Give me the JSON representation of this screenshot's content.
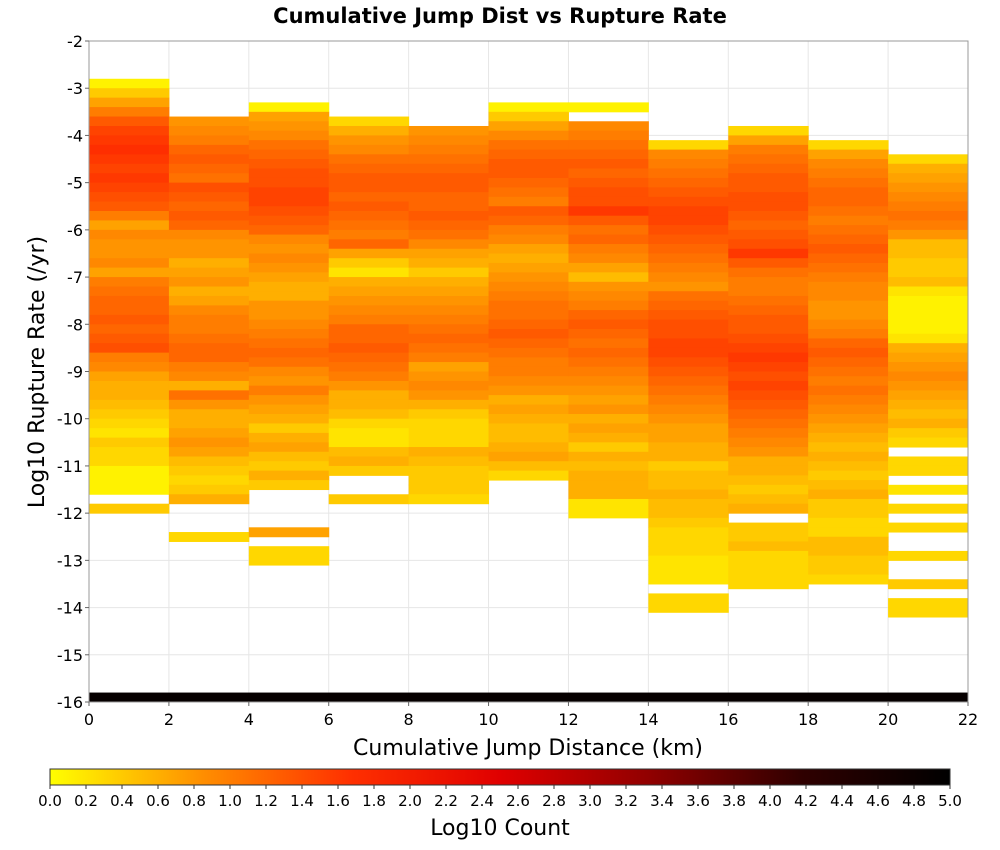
{
  "chart_data": {
    "type": "heatmap",
    "title": "Cumulative Jump Dist vs Rupture Rate",
    "xlabel": "Cumulative Jump Distance (km)",
    "ylabel": "Log10 Rupture Rate (/yr)",
    "colorbar_label": "Log10 Count",
    "xlim": [
      0,
      22
    ],
    "ylim": [
      -16,
      -2
    ],
    "x_ticks": [
      "0",
      "2",
      "4",
      "6",
      "8",
      "10",
      "12",
      "14",
      "16",
      "18",
      "20",
      "22"
    ],
    "y_ticks": [
      "-2",
      "-3",
      "-4",
      "-5",
      "-6",
      "-7",
      "-8",
      "-9",
      "-10",
      "-11",
      "-12",
      "-13",
      "-14",
      "-15",
      "-16"
    ],
    "colorbar_ticks": [
      "0.0",
      "0.2",
      "0.4",
      "0.6",
      "0.8",
      "1.0",
      "1.2",
      "1.4",
      "1.6",
      "1.8",
      "2.0",
      "2.2",
      "2.4",
      "2.6",
      "2.8",
      "3.0",
      "3.2",
      "3.4",
      "3.6",
      "3.8",
      "4.0",
      "4.2",
      "4.4",
      "4.6",
      "4.8",
      "5.0"
    ],
    "colorbar_range": [
      0,
      5
    ],
    "colormap": [
      "#ffff00",
      "#ff9000",
      "#ff3000",
      "#e00000",
      "#900000",
      "#300000",
      "#000000"
    ],
    "grid": true,
    "x_bin_width": 2,
    "y_bin_height": 0.2,
    "columns": [
      {
        "x_start": 0,
        "y_top": -2.8,
        "values": [
          0.1,
          0.4,
          0.7,
          1.0,
          1.3,
          1.5,
          1.6,
          1.7,
          1.6,
          1.5,
          1.6,
          1.5,
          1.4,
          1.3,
          1.0,
          0.7,
          0.9,
          0.8,
          0.8,
          0.9,
          0.7,
          1.0,
          1.1,
          1.2,
          1.2,
          1.3,
          1.2,
          1.3,
          1.4,
          1.0,
          0.9,
          0.7,
          0.6,
          0.6,
          0.5,
          0.4,
          0.3,
          0.2,
          0.4,
          0.3,
          0.3,
          0.1,
          0.1,
          0.1,
          null,
          0.4
        ]
      },
      {
        "x_start": 2,
        "y_top": -3.6,
        "values": [
          0.8,
          0.9,
          1.0,
          1.2,
          1.3,
          1.2,
          1.1,
          1.4,
          1.3,
          1.2,
          1.3,
          1.2,
          0.9,
          0.8,
          0.8,
          0.6,
          0.7,
          0.8,
          0.6,
          0.7,
          0.9,
          1.0,
          1.0,
          1.1,
          1.2,
          1.2,
          1.0,
          0.9,
          0.6,
          1.1,
          0.8,
          0.6,
          0.6,
          0.7,
          0.8,
          0.7,
          0.5,
          0.4,
          0.3,
          0.4,
          0.6,
          null,
          null,
          null,
          0.3
        ]
      },
      {
        "x_start": 4,
        "y_top": -3.3,
        "values": [
          0.1,
          0.7,
          0.8,
          0.9,
          1.1,
          1.2,
          1.3,
          1.4,
          1.4,
          1.5,
          1.5,
          1.4,
          1.3,
          1.2,
          0.9,
          0.8,
          0.9,
          0.8,
          0.7,
          0.6,
          0.6,
          0.8,
          0.8,
          0.9,
          1.0,
          1.1,
          1.2,
          1.1,
          0.9,
          0.8,
          1.0,
          0.8,
          0.7,
          0.6,
          0.4,
          0.6,
          0.7,
          0.5,
          0.4,
          0.6,
          0.4,
          null,
          null,
          null,
          null,
          0.7,
          null,
          0.3,
          0.3
        ]
      },
      {
        "x_start": 6,
        "y_top": -3.6,
        "values": [
          0.3,
          0.6,
          0.8,
          0.9,
          1.1,
          1.2,
          1.3,
          1.3,
          1.2,
          1.3,
          1.2,
          1.1,
          1.0,
          1.2,
          0.7,
          0.4,
          0.2,
          0.6,
          0.7,
          0.8,
          0.9,
          1.0,
          1.2,
          1.2,
          1.3,
          1.2,
          1.1,
          1.0,
          0.8,
          0.6,
          0.6,
          0.5,
          0.3,
          0.2,
          0.2,
          0.5,
          0.6,
          0.4,
          null,
          null,
          0.4
        ]
      },
      {
        "x_start": 8,
        "y_top": -3.8,
        "values": [
          0.8,
          0.9,
          1.0,
          1.1,
          1.2,
          1.3,
          1.3,
          1.2,
          1.2,
          1.3,
          1.2,
          1.1,
          0.9,
          0.7,
          0.6,
          0.4,
          0.6,
          0.7,
          0.8,
          0.9,
          1.0,
          1.1,
          1.2,
          1.1,
          1.0,
          0.7,
          0.8,
          0.9,
          0.8,
          0.6,
          0.4,
          0.3,
          0.3,
          0.3,
          0.6,
          0.5,
          0.4,
          0.4,
          0.4,
          0.3
        ]
      },
      {
        "x_start": 10,
        "y_top": -3.3,
        "values": [
          0.1,
          0.4,
          0.7,
          0.9,
          1.1,
          1.2,
          1.3,
          1.3,
          1.2,
          1.1,
          1.0,
          1.3,
          1.2,
          1.0,
          0.9,
          0.7,
          0.6,
          0.7,
          0.8,
          0.9,
          1.0,
          1.1,
          1.1,
          1.2,
          1.3,
          1.2,
          1.1,
          1.0,
          1.0,
          0.9,
          0.8,
          0.6,
          0.7,
          0.6,
          0.5,
          0.5,
          0.6,
          0.7,
          0.5,
          0.3
        ]
      },
      {
        "x_start": 12,
        "y_top": -3.3,
        "values": [
          0.1,
          null,
          0.9,
          1.0,
          1.1,
          1.2,
          1.3,
          1.2,
          1.3,
          1.4,
          1.4,
          1.6,
          1.3,
          1.1,
          1.2,
          1.0,
          0.9,
          0.7,
          0.5,
          0.8,
          0.9,
          1.0,
          1.2,
          1.3,
          1.2,
          1.1,
          1.2,
          1.1,
          1.0,
          0.9,
          0.8,
          0.7,
          0.8,
          0.6,
          0.7,
          0.6,
          0.4,
          0.6,
          0.5,
          0.6,
          0.6,
          0.6,
          0.2,
          0.2
        ]
      },
      {
        "x_start": 14,
        "y_top": -4.1,
        "values": [
          0.3,
          0.9,
          1.0,
          1.1,
          1.2,
          1.3,
          1.4,
          1.5,
          1.5,
          1.4,
          1.3,
          1.2,
          1.1,
          1.0,
          0.9,
          0.8,
          1.1,
          1.2,
          1.3,
          1.4,
          1.4,
          1.5,
          1.5,
          1.4,
          1.3,
          1.2,
          1.1,
          1.0,
          0.9,
          0.8,
          0.7,
          0.7,
          0.6,
          0.6,
          0.4,
          0.5,
          0.5,
          0.6,
          0.5,
          0.5,
          0.4,
          0.3,
          0.3,
          0.3,
          0.2,
          0.2,
          0.2,
          null,
          0.3,
          0.3
        ]
      },
      {
        "x_start": 16,
        "y_top": -3.8,
        "values": [
          0.3,
          0.7,
          1.0,
          1.1,
          1.2,
          1.3,
          1.3,
          1.4,
          1.4,
          1.3,
          1.2,
          1.3,
          1.4,
          1.6,
          1.3,
          1.1,
          1.0,
          1.0,
          1.1,
          1.2,
          1.3,
          1.3,
          1.4,
          1.5,
          1.6,
          1.5,
          1.4,
          1.5,
          1.4,
          1.3,
          1.2,
          1.1,
          1.0,
          0.9,
          0.8,
          0.6,
          0.6,
          0.5,
          0.4,
          0.5,
          0.6,
          null,
          0.4,
          0.4,
          0.5,
          0.3,
          0.3,
          0.3,
          0.3
        ]
      },
      {
        "x_start": 18,
        "y_top": -4.1,
        "values": [
          0.3,
          0.7,
          0.9,
          1.0,
          1.1,
          1.2,
          1.2,
          1.1,
          1.0,
          1.1,
          1.2,
          1.3,
          1.2,
          1.1,
          1.0,
          0.9,
          0.9,
          0.8,
          0.8,
          0.9,
          1.0,
          1.2,
          1.3,
          1.2,
          1.1,
          1.0,
          1.1,
          1.0,
          0.9,
          0.8,
          0.7,
          0.6,
          0.5,
          0.6,
          0.5,
          0.4,
          0.5,
          0.6,
          0.4,
          0.4,
          0.3,
          0.3,
          0.5,
          0.5,
          0.4,
          0.4,
          0.3
        ]
      },
      {
        "x_start": 20,
        "y_top": -4.4,
        "values": [
          0.3,
          0.6,
          0.7,
          0.8,
          0.9,
          1.0,
          1.1,
          1.0,
          0.8,
          0.5,
          0.5,
          0.4,
          0.4,
          0.5,
          0.2,
          0.1,
          0.1,
          0.1,
          0.1,
          0.2,
          0.6,
          0.7,
          0.8,
          0.9,
          0.8,
          0.7,
          0.6,
          0.5,
          0.6,
          0.4,
          0.3,
          null,
          0.3,
          0.3,
          null,
          0.2,
          null,
          0.3,
          null,
          0.3,
          null,
          null,
          0.3,
          null,
          null,
          0.4,
          null,
          0.3,
          0.3
        ]
      }
    ],
    "bottom_band": {
      "y_range": [
        -16,
        -15.8
      ],
      "x_range": [
        0,
        22
      ],
      "value": 4.9
    }
  }
}
